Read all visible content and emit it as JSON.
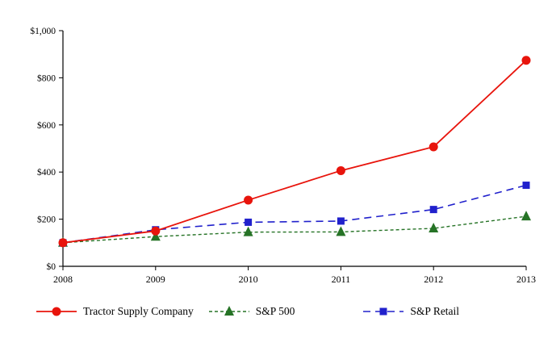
{
  "chart_data": {
    "type": "line",
    "title": "",
    "xlabel": "",
    "ylabel": "",
    "x": [
      2008,
      2009,
      2010,
      2011,
      2012,
      2013
    ],
    "xtick_labels": [
      "2008",
      "2009",
      "2010",
      "2011",
      "2012",
      "2013"
    ],
    "ylim": [
      0,
      1000
    ],
    "yticks": [
      0,
      200,
      400,
      600,
      800,
      1000
    ],
    "ytick_labels": [
      "$0",
      "$200",
      "$400",
      "$600",
      "$800",
      "$1,000"
    ],
    "grid": false,
    "legend_position": "bottom",
    "axis_color": "#000000",
    "series": [
      {
        "name": "Tractor Supply Company",
        "values": [
          100,
          150,
          281,
          406,
          507,
          874
        ],
        "color": "#e8140c",
        "marker": "circle",
        "dash": "solid",
        "stroke_width": 1.8
      },
      {
        "name": "S&P 500",
        "values": [
          100,
          126,
          145,
          146,
          161,
          212
        ],
        "color": "#267326",
        "marker": "triangle",
        "dash": "dashed",
        "stroke_width": 1.4
      },
      {
        "name": "S&P Retail",
        "values": [
          100,
          155,
          187,
          192,
          241,
          344
        ],
        "color": "#2121cc",
        "marker": "square",
        "dash": "longdash",
        "stroke_width": 1.6
      }
    ]
  }
}
